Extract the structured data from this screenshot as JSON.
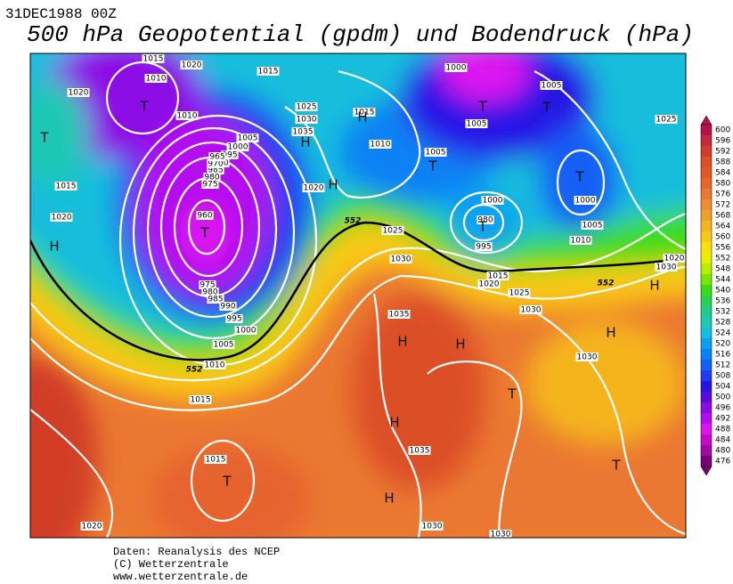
{
  "header": {
    "date": "31DEC1988 00Z",
    "title": "500 hPa Geopotential (gpdm) und Bodendruck (hPa)"
  },
  "map": {
    "isobar_labels": [
      "1015",
      "1020",
      "1015",
      "1010",
      "1020",
      "1010",
      "1025",
      "1030",
      "1035",
      "1005",
      "1000",
      "995",
      "990",
      "985",
      "980",
      "975",
      "970",
      "965",
      "960",
      "1015",
      "1020",
      "1020",
      "1015",
      "1010",
      "1005",
      "1000",
      "980",
      "995",
      "1000",
      "1005",
      "1010",
      "1025",
      "1030",
      "1015",
      "1020",
      "1025",
      "1030",
      "1035",
      "975",
      "980",
      "985",
      "990",
      "995",
      "1000",
      "1005",
      "1010",
      "1015",
      "1015",
      "1035",
      "1030",
      "1020",
      "1030",
      "1030",
      "1005",
      "1025",
      "1005",
      "1000",
      "1020",
      "1030"
    ],
    "line_552_labels": [
      "552",
      "552",
      "552"
    ],
    "pressure_centers": [
      "H",
      "H",
      "H",
      "H",
      "H",
      "H",
      "H",
      "H",
      "H",
      "H",
      "T",
      "T",
      "T",
      "T",
      "T",
      "T",
      "T",
      "T",
      "T",
      "T",
      "T"
    ]
  },
  "colorbar": {
    "levels": [
      600,
      596,
      592,
      588,
      584,
      580,
      576,
      572,
      568,
      564,
      560,
      556,
      552,
      548,
      544,
      540,
      536,
      532,
      528,
      524,
      520,
      516,
      512,
      508,
      504,
      500,
      496,
      492,
      488,
      484,
      480,
      476
    ],
    "colors": [
      "#b4144b",
      "#c8283c",
      "#d23c28",
      "#dc5028",
      "#e05a28",
      "#e6642d",
      "#eb7832",
      "#ee8c32",
      "#f0a028",
      "#f5b41e",
      "#fac814",
      "#fae10a",
      "#e6f000",
      "#b4f000",
      "#78e600",
      "#3cdc14",
      "#28d250",
      "#1ecd8c",
      "#1ec8b4",
      "#14bedc",
      "#0aa0f0",
      "#0a82f5",
      "#145ff5",
      "#1e3cf0",
      "#2814e6",
      "#5a0adc",
      "#8c0ae6",
      "#b40af0",
      "#dc14f0",
      "#c80ac8",
      "#a00aa0",
      "#780078"
    ]
  },
  "footer": {
    "lines": [
      "Daten: Reanalysis des NCEP",
      "(C) Wetterzentrale",
      "www.wetterzentrale.de"
    ]
  }
}
